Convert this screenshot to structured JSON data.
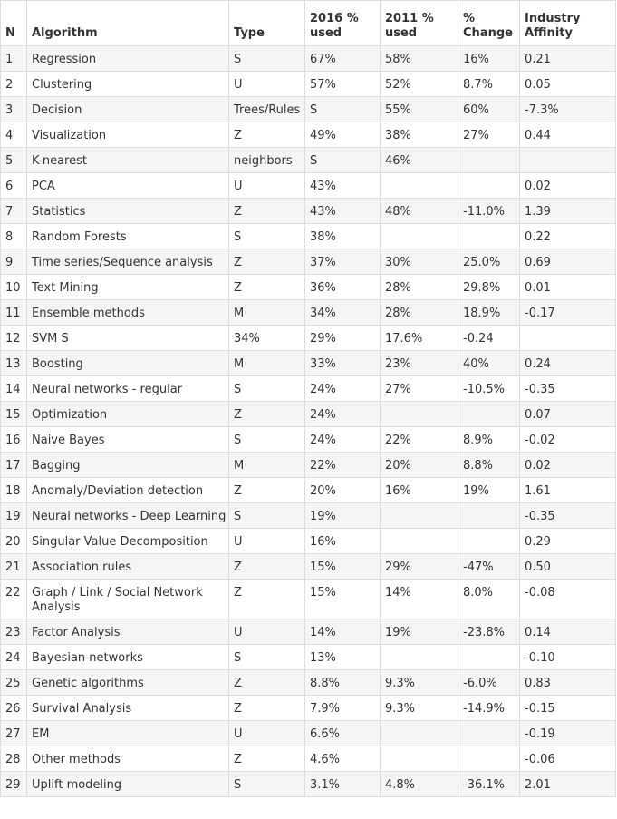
{
  "table": {
    "headers": {
      "n": "N",
      "algorithm": "Algorithm",
      "type": "Type",
      "used2016": "2016 % used",
      "used2011": "2011 % used",
      "change": "% Change",
      "affinity": "Industry Affinity"
    },
    "rows": [
      [
        "1",
        "Regression",
        "S",
        "67%",
        "58%",
        "16%",
        "0.21"
      ],
      [
        "2",
        "Clustering",
        "U",
        "57%",
        "52%",
        "8.7%",
        "0.05"
      ],
      [
        "3",
        "Decision",
        "Trees/Rules",
        "S",
        "55%",
        "60%",
        "-7.3%"
      ],
      [
        "4",
        "Visualization",
        "Z",
        "49%",
        "38%",
        "27%",
        "0.44"
      ],
      [
        "5",
        "K-nearest",
        "neighbors",
        "S",
        "46%",
        "",
        ""
      ],
      [
        "6",
        "PCA",
        "U",
        "43%",
        "",
        "",
        "0.02"
      ],
      [
        "7",
        "Statistics",
        "Z",
        "43%",
        "48%",
        "-11.0%",
        "1.39"
      ],
      [
        "8",
        "Random Forests",
        "S",
        "38%",
        "",
        "",
        "0.22"
      ],
      [
        "9",
        "Time series/Sequence analysis",
        "Z",
        "37%",
        "30%",
        "25.0%",
        "0.69"
      ],
      [
        "10",
        "Text Mining",
        "Z",
        "36%",
        "28%",
        "29.8%",
        "0.01"
      ],
      [
        "11",
        "Ensemble methods",
        "M",
        "34%",
        "28%",
        "18.9%",
        "-0.17"
      ],
      [
        "12",
        "SVM S",
        "34%",
        "29%",
        "17.6%",
        "-0.24",
        ""
      ],
      [
        "13",
        "Boosting",
        "M",
        "33%",
        "23%",
        "40%",
        "0.24"
      ],
      [
        "14",
        "Neural networks - regular",
        "S",
        "24%",
        "27%",
        "-10.5%",
        "-0.35"
      ],
      [
        "15",
        "Optimization",
        "Z",
        "24%",
        "",
        "",
        "0.07"
      ],
      [
        "16",
        "Naive Bayes",
        "S",
        "24%",
        "22%",
        "8.9%",
        "-0.02"
      ],
      [
        "17",
        "Bagging",
        "M",
        "22%",
        "20%",
        "8.8%",
        "0.02"
      ],
      [
        "18",
        "Anomaly/Deviation detection",
        "Z",
        "20%",
        "16%",
        "19%",
        "1.61"
      ],
      [
        "19",
        "Neural networks - Deep Learning",
        "S",
        "19%",
        "",
        "",
        "-0.35"
      ],
      [
        "20",
        "Singular Value Decomposition",
        "U",
        "16%",
        "",
        "",
        "0.29"
      ],
      [
        "21",
        "Association rules",
        "Z",
        "15%",
        "29%",
        "-47%",
        "0.50"
      ],
      [
        "22",
        "Graph / Link / Social Network Analysis",
        "Z",
        "15%",
        "14%",
        "8.0%",
        "-0.08"
      ],
      [
        "23",
        "Factor Analysis",
        "U",
        "14%",
        "19%",
        "-23.8%",
        "0.14"
      ],
      [
        "24",
        "Bayesian networks",
        "S",
        "13%",
        "",
        "",
        "-0.10"
      ],
      [
        "25",
        "Genetic algorithms",
        "Z",
        "8.8%",
        "9.3%",
        "-6.0%",
        "0.83"
      ],
      [
        "26",
        "Survival Analysis",
        "Z",
        "7.9%",
        "9.3%",
        "-14.9%",
        "-0.15"
      ],
      [
        "27",
        "EM",
        "U",
        "6.6%",
        "",
        "",
        "-0.19"
      ],
      [
        "28",
        "Other methods",
        "Z",
        "4.6%",
        "",
        "",
        "-0.06"
      ],
      [
        "29",
        "Uplift modeling",
        "S",
        "3.1%",
        "4.8%",
        "-36.1%",
        "2.01"
      ]
    ]
  }
}
